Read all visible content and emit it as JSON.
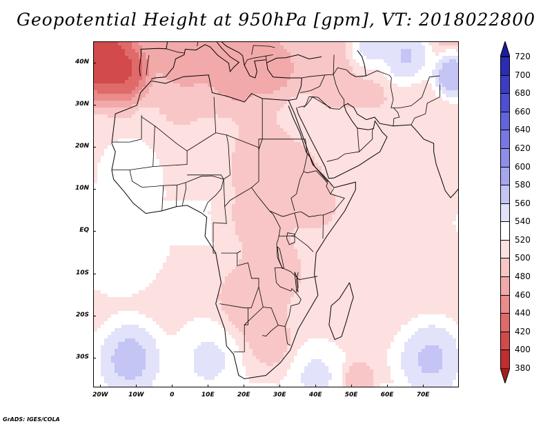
{
  "title": "Geopotential Height at 950hPa [gpm], VT: 2018022800",
  "credit": "GrADS: IGES/COLA",
  "map": {
    "lon_range": [
      -22,
      80
    ],
    "lat_range": [
      -37,
      45
    ],
    "y_axis_labels": [
      {
        "lat": 40,
        "label": "40N"
      },
      {
        "lat": 30,
        "label": "30N"
      },
      {
        "lat": 20,
        "label": "20N"
      },
      {
        "lat": 10,
        "label": "10N"
      },
      {
        "lat": 0,
        "label": "EQ"
      },
      {
        "lat": -10,
        "label": "10S"
      },
      {
        "lat": -20,
        "label": "20S"
      },
      {
        "lat": -30,
        "label": "30S"
      }
    ],
    "x_axis_labels": [
      {
        "lon": -20,
        "label": "20W"
      },
      {
        "lon": -10,
        "label": "10W"
      },
      {
        "lon": 0,
        "label": "0"
      },
      {
        "lon": 10,
        "label": "10E"
      },
      {
        "lon": 20,
        "label": "20E"
      },
      {
        "lon": 30,
        "label": "30E"
      },
      {
        "lon": 40,
        "label": "40E"
      },
      {
        "lon": 50,
        "label": "50E"
      },
      {
        "lon": 60,
        "label": "60E"
      },
      {
        "lon": 70,
        "label": "70E"
      }
    ]
  },
  "colorbar": {
    "units": "gpm",
    "labels": [
      "720",
      "700",
      "680",
      "660",
      "640",
      "620",
      "600",
      "580",
      "560",
      "540",
      "520",
      "500",
      "480",
      "460",
      "440",
      "420",
      "400",
      "380"
    ],
    "colors": [
      "#1c1c9e",
      "#2b2bb4",
      "#3c3cc6",
      "#4f4fd3",
      "#6363dd",
      "#7878e4",
      "#8e8eea",
      "#a6a6ef",
      "#c4c4f5",
      "#e2e2fa",
      "#ffffff",
      "#fde0e0",
      "#f8c6c6",
      "#f2a9a9",
      "#eb8b8b",
      "#e06a6a",
      "#d24a4a",
      "#bf2f2f",
      "#a61d1d"
    ]
  },
  "field_blobs": [
    {
      "lon": -22,
      "lat": 42,
      "v": 400,
      "s": 7
    },
    {
      "lon": -14,
      "lat": 38,
      "v": 420,
      "s": 5
    },
    {
      "lon": 5,
      "lat": 41,
      "v": 480,
      "s": 6
    },
    {
      "lon": 17,
      "lat": 38,
      "v": 480,
      "s": 6
    },
    {
      "lon": 28,
      "lat": 38,
      "v": 490,
      "s": 5
    },
    {
      "lon": 8,
      "lat": 29,
      "v": 510,
      "s": 6
    },
    {
      "lon": 25,
      "lat": 16,
      "v": 500,
      "s": 7
    },
    {
      "lon": 32,
      "lat": 10,
      "v": 495,
      "s": 7
    },
    {
      "lon": 40,
      "lat": 6,
      "v": 505,
      "s": 5
    },
    {
      "lon": 22,
      "lat": 3,
      "v": 508,
      "s": 6
    },
    {
      "lon": 28,
      "lat": -8,
      "v": 500,
      "s": 6
    },
    {
      "lon": 22,
      "lat": -16,
      "v": 495,
      "s": 6
    },
    {
      "lon": 27,
      "lat": -26,
      "v": 505,
      "s": 5
    },
    {
      "lon": 52,
      "lat": -35,
      "v": 490,
      "s": 3
    },
    {
      "lon": 62,
      "lat": -2,
      "v": 520,
      "s": 10
    },
    {
      "lon": 70,
      "lat": 20,
      "v": 525,
      "s": 8
    },
    {
      "lon": 65,
      "lat": 42,
      "v": 600,
      "s": 5
    },
    {
      "lon": 78,
      "lat": 37,
      "v": 620,
      "s": 4
    },
    {
      "lon": 55,
      "lat": 44,
      "v": 580,
      "s": 4
    },
    {
      "lon": -12,
      "lat": 15,
      "v": 555,
      "s": 6
    },
    {
      "lon": -15,
      "lat": -5,
      "v": 565,
      "s": 7
    },
    {
      "lon": -12,
      "lat": -30,
      "v": 600,
      "s": 6
    },
    {
      "lon": 10,
      "lat": -30,
      "v": 570,
      "s": 6
    },
    {
      "lon": 40,
      "lat": -34,
      "v": 570,
      "s": 5
    },
    {
      "lon": 72,
      "lat": -30,
      "v": 595,
      "s": 6
    },
    {
      "lon": 10,
      "lat": 22,
      "v": 545,
      "s": 5
    },
    {
      "lon": 35,
      "lat": 27,
      "v": 530,
      "s": 4
    }
  ]
}
